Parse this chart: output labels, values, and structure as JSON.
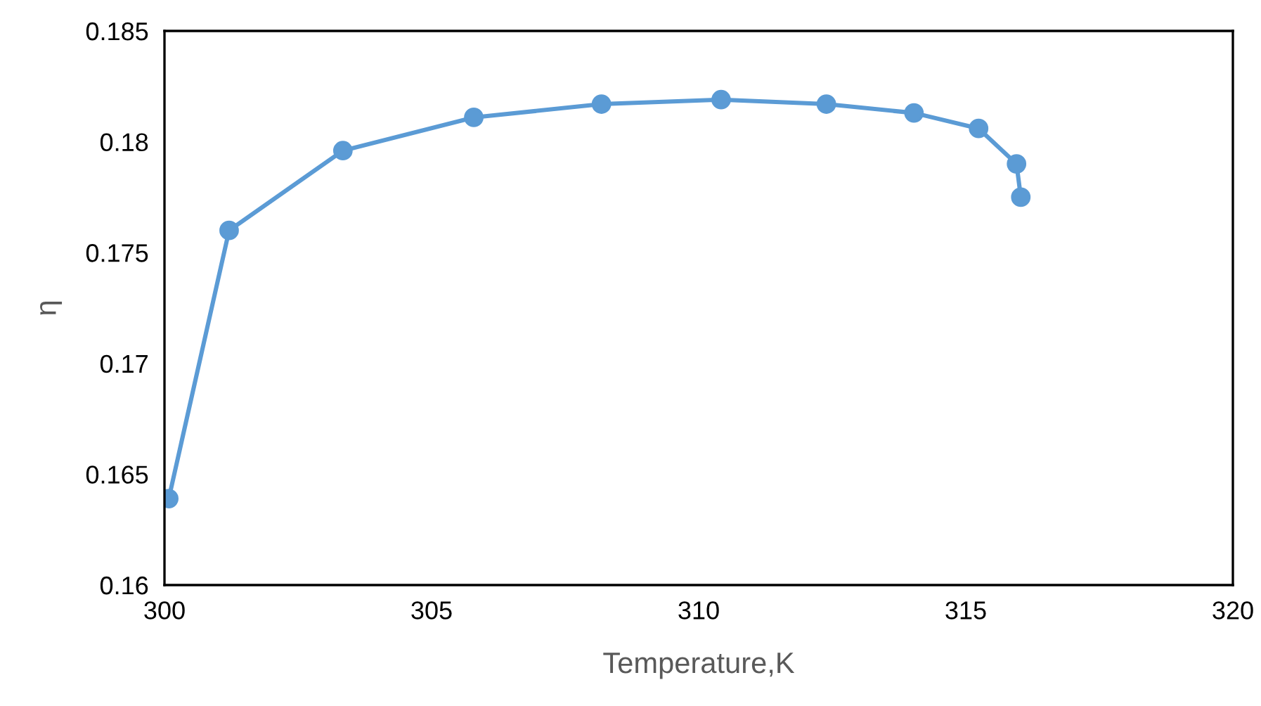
{
  "chart_data": {
    "type": "line",
    "xlabel": "Temperature,K",
    "ylabel": "η",
    "series": [
      {
        "color": "#5b9bd5",
        "x": [
          300.08,
          301.21,
          303.34,
          305.79,
          308.18,
          310.42,
          312.39,
          314.03,
          315.24,
          315.95,
          316.03
        ],
        "values": [
          0.1639,
          0.176,
          0.1796,
          0.1811,
          0.1817,
          0.1819,
          0.1817,
          0.1813,
          0.1806,
          0.179,
          0.1775
        ]
      }
    ],
    "marker": "circle",
    "line_style": "solid",
    "grid": false,
    "legend": false,
    "xlim": [
      300,
      320
    ],
    "xticks": [
      300,
      305,
      310,
      315,
      320
    ],
    "ylim": [
      0.16,
      0.185
    ],
    "yticks": [
      {
        "value": 0.16,
        "label": "0.16"
      },
      {
        "value": 0.165,
        "label": "0.165"
      },
      {
        "value": 0.17,
        "label": "0.17"
      },
      {
        "value": 0.175,
        "label": "0.175"
      },
      {
        "value": 0.18,
        "label": "0.18"
      },
      {
        "value": 0.185,
        "label": "0.185"
      }
    ]
  }
}
